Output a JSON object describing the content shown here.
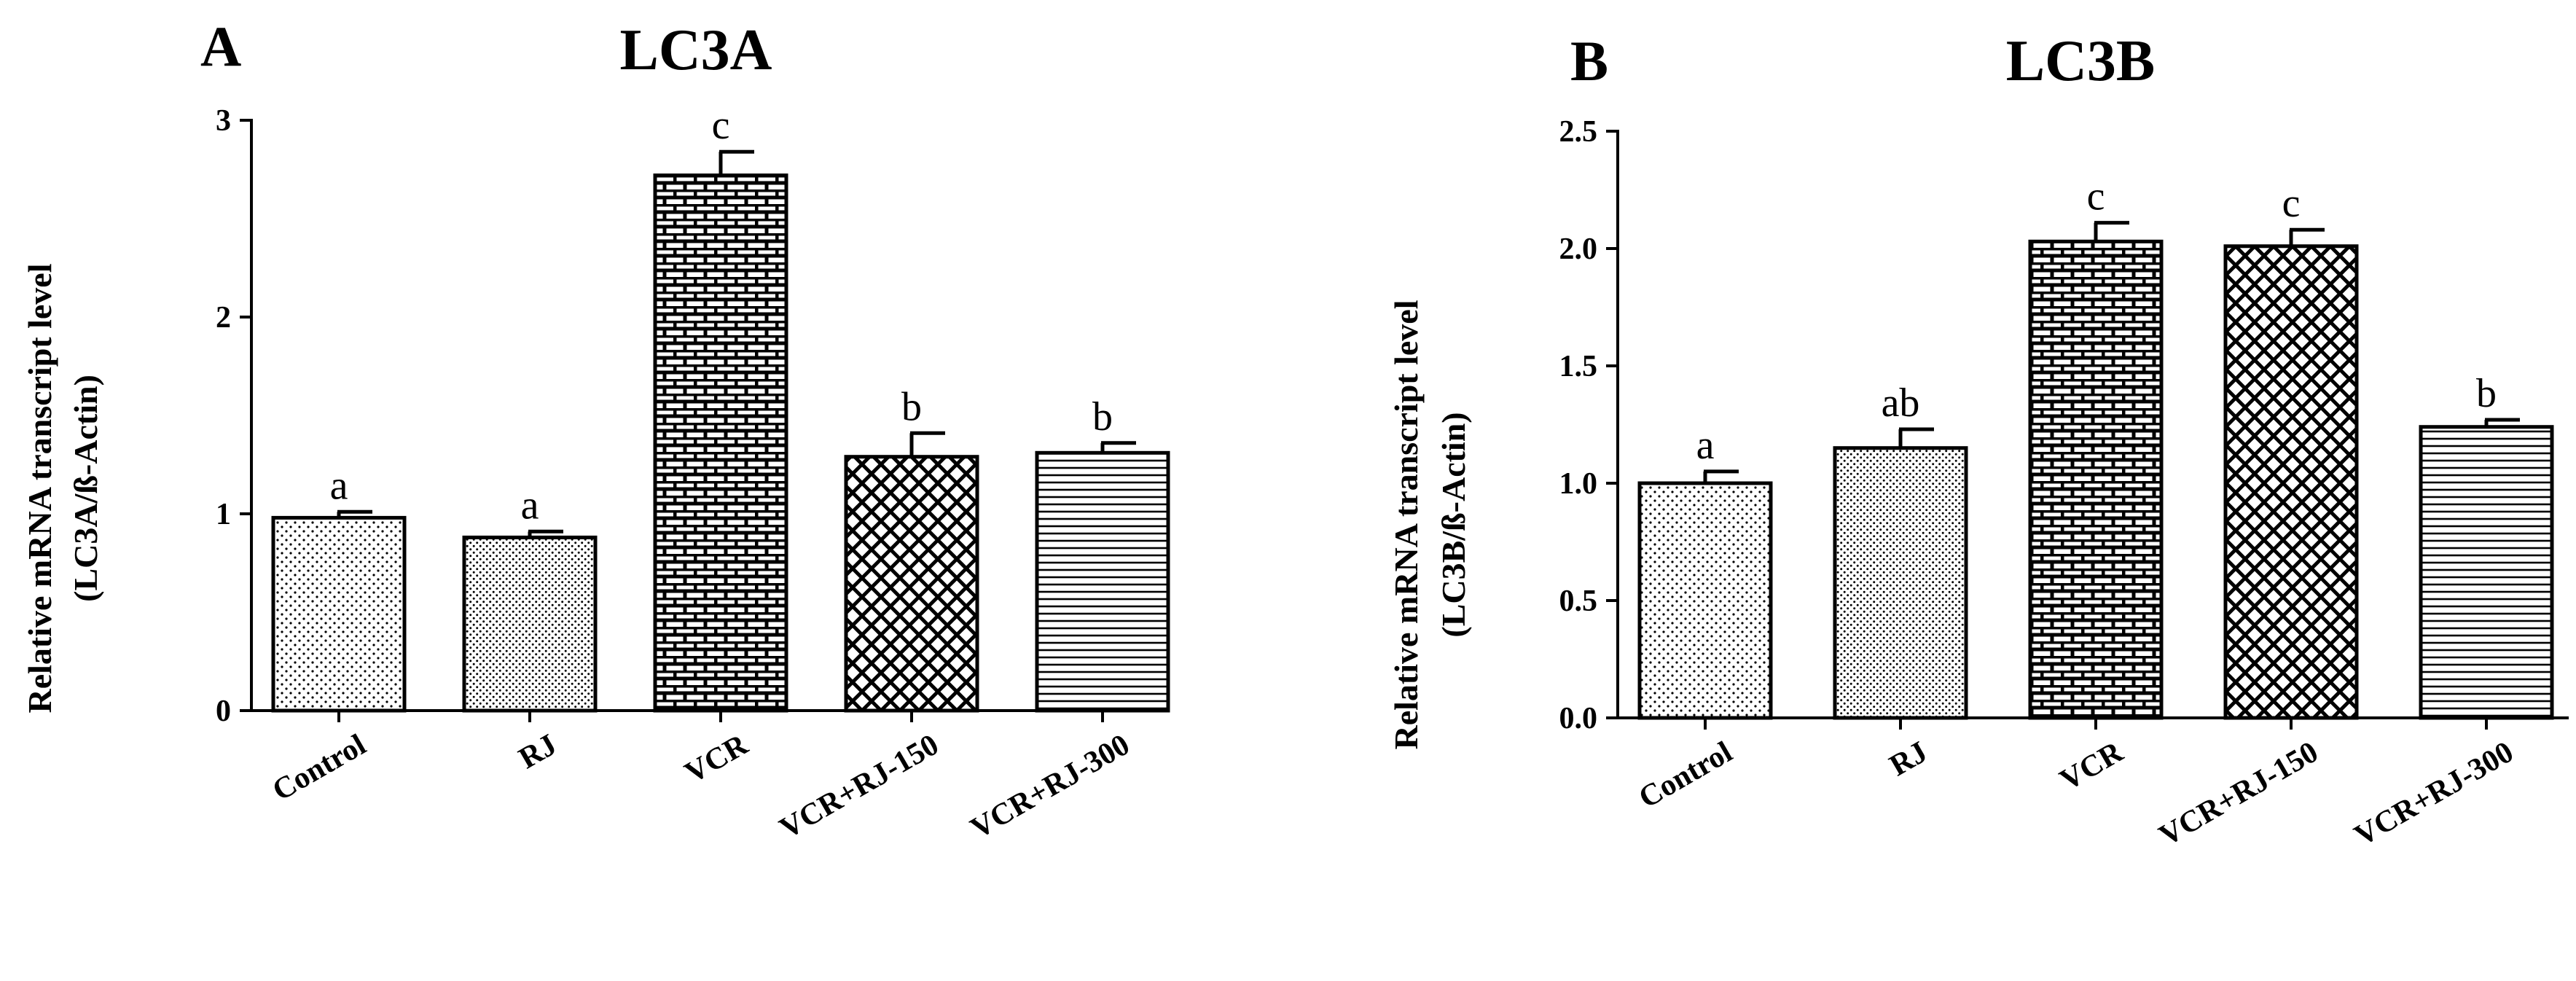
{
  "chart_data": [
    {
      "type": "bar",
      "panel": "A",
      "title": "LC3A",
      "ylabel_line1": "Relative mRNA transcript level",
      "ylabel_line2": "(LC3A/ß-Actin)",
      "xlabel": "",
      "ylim": [
        0,
        3
      ],
      "yticks": [
        0,
        1,
        2,
        3
      ],
      "ytick_labels": [
        "0",
        "1",
        "2",
        "3"
      ],
      "categories": [
        "Control",
        "RJ",
        "VCR",
        "VCR+RJ-150",
        "VCR+RJ-300"
      ],
      "values": [
        0.98,
        0.88,
        2.72,
        1.29,
        1.31
      ],
      "errors": [
        0.03,
        0.03,
        0.12,
        0.12,
        0.05
      ],
      "significance": [
        "a",
        "a",
        "c",
        "b",
        "b"
      ],
      "patterns": [
        "dots",
        "dots-dense",
        "bricks",
        "crosshatch",
        "hlines"
      ]
    },
    {
      "type": "bar",
      "panel": "B",
      "title": "LC3B",
      "ylabel_line1": "Relative mRNA transcript level",
      "ylabel_line2": "(LC3B/ß-Actin)",
      "xlabel": "",
      "ylim": [
        0,
        2.5
      ],
      "yticks": [
        0,
        0.5,
        1.0,
        1.5,
        2.0,
        2.5
      ],
      "ytick_labels": [
        "0.0",
        "0.5",
        "1.0",
        "1.5",
        "2.0",
        "2.5"
      ],
      "categories": [
        "Control",
        "RJ",
        "VCR",
        "VCR+RJ-150",
        "VCR+RJ-300"
      ],
      "values": [
        1.0,
        1.15,
        2.03,
        2.01,
        1.24
      ],
      "errors": [
        0.05,
        0.08,
        0.08,
        0.07,
        0.03
      ],
      "significance": [
        "a",
        "ab",
        "c",
        "c",
        "b"
      ],
      "patterns": [
        "dots",
        "dots-dense",
        "bricks",
        "crosshatch",
        "hlines"
      ]
    }
  ]
}
